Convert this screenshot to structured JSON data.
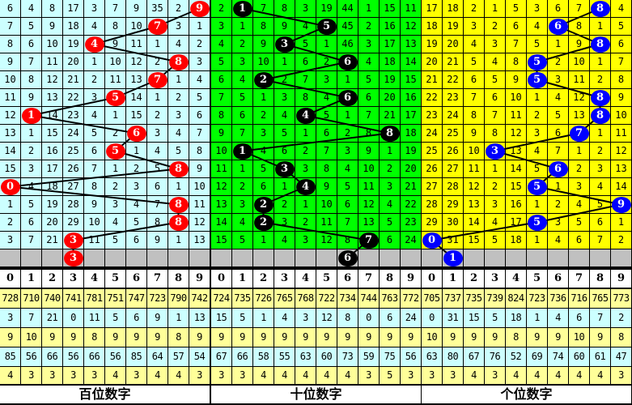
{
  "chart_data": {
    "type": "table",
    "digits": [
      "0",
      "1",
      "2",
      "3",
      "4",
      "5",
      "6",
      "7",
      "8",
      "9"
    ],
    "panels": [
      {
        "title": "百位数字",
        "cell_bg": "#ccffff",
        "ball_color": "#ff0000",
        "ball_text_color": "#ffffff",
        "rows": [
          [
            6,
            4,
            8,
            17,
            3,
            7,
            9,
            35,
            2,
            9
          ],
          [
            7,
            5,
            9,
            18,
            4,
            8,
            10,
            7,
            3,
            1
          ],
          [
            8,
            6,
            10,
            19,
            4,
            9,
            11,
            1,
            4,
            2
          ],
          [
            9,
            7,
            11,
            20,
            1,
            10,
            12,
            2,
            8,
            3
          ],
          [
            10,
            8,
            12,
            21,
            2,
            11,
            13,
            7,
            1,
            4
          ],
          [
            11,
            9,
            13,
            22,
            3,
            5,
            14,
            1,
            2,
            5
          ],
          [
            12,
            1,
            14,
            23,
            4,
            1,
            15,
            2,
            3,
            6
          ],
          [
            13,
            1,
            15,
            24,
            5,
            2,
            6,
            3,
            4,
            7
          ],
          [
            14,
            2,
            16,
            25,
            6,
            5,
            1,
            4,
            5,
            8
          ],
          [
            15,
            3,
            17,
            26,
            7,
            1,
            2,
            5,
            8,
            9
          ],
          [
            0,
            4,
            18,
            27,
            8,
            2,
            3,
            6,
            1,
            10
          ],
          [
            1,
            5,
            19,
            28,
            9,
            3,
            4,
            7,
            8,
            11
          ],
          [
            2,
            6,
            20,
            29,
            10,
            4,
            5,
            8,
            8,
            12
          ],
          [
            3,
            7,
            21,
            3,
            11,
            5,
            6,
            9,
            1,
            13
          ]
        ],
        "hits": [
          9,
          7,
          4,
          8,
          7,
          5,
          1,
          6,
          5,
          8,
          0,
          8,
          8,
          3
        ],
        "next_hit": 3,
        "stat_rows": [
          [
            728,
            710,
            740,
            741,
            781,
            751,
            747,
            723,
            790,
            742
          ],
          [
            3,
            7,
            21,
            0,
            11,
            5,
            6,
            9,
            1,
            13
          ],
          [
            9,
            10,
            9,
            9,
            8,
            9,
            9,
            9,
            8,
            9
          ],
          [
            85,
            56,
            66,
            56,
            66,
            56,
            85,
            64,
            57,
            54
          ],
          [
            4,
            3,
            3,
            3,
            3,
            4,
            3,
            4,
            4,
            3
          ]
        ]
      },
      {
        "title": "十位数字",
        "cell_bg": "#00ff00",
        "ball_color": "#000000",
        "ball_text_color": "#ffffff",
        "rows": [
          [
            2,
            1,
            7,
            8,
            3,
            19,
            44,
            1,
            15,
            11
          ],
          [
            3,
            1,
            8,
            9,
            4,
            5,
            45,
            2,
            16,
            12
          ],
          [
            4,
            2,
            9,
            3,
            5,
            1,
            46,
            3,
            17,
            13
          ],
          [
            5,
            3,
            10,
            1,
            6,
            2,
            6,
            4,
            18,
            14
          ],
          [
            6,
            4,
            2,
            2,
            7,
            3,
            1,
            5,
            19,
            15
          ],
          [
            7,
            5,
            1,
            3,
            8,
            4,
            6,
            6,
            20,
            16
          ],
          [
            8,
            6,
            2,
            4,
            4,
            5,
            1,
            7,
            21,
            17
          ],
          [
            9,
            7,
            3,
            5,
            1,
            6,
            2,
            8,
            8,
            18
          ],
          [
            10,
            1,
            4,
            6,
            2,
            7,
            3,
            9,
            1,
            19
          ],
          [
            11,
            1,
            5,
            3,
            3,
            8,
            4,
            10,
            2,
            20
          ],
          [
            12,
            2,
            6,
            1,
            4,
            9,
            5,
            11,
            3,
            21
          ],
          [
            13,
            3,
            2,
            2,
            1,
            10,
            6,
            12,
            4,
            22
          ],
          [
            14,
            4,
            2,
            3,
            2,
            11,
            7,
            13,
            5,
            23
          ],
          [
            15,
            5,
            1,
            4,
            3,
            12,
            8,
            7,
            6,
            24
          ]
        ],
        "hits": [
          1,
          5,
          3,
          6,
          2,
          6,
          4,
          8,
          1,
          3,
          4,
          2,
          2,
          7
        ],
        "next_hit": 6,
        "stat_rows": [
          [
            724,
            735,
            726,
            765,
            768,
            722,
            734,
            744,
            763,
            772
          ],
          [
            15,
            5,
            1,
            4,
            3,
            12,
            8,
            0,
            6,
            24
          ],
          [
            9,
            9,
            9,
            9,
            9,
            9,
            9,
            9,
            9,
            9
          ],
          [
            67,
            66,
            58,
            55,
            63,
            60,
            73,
            59,
            75,
            56
          ],
          [
            3,
            3,
            4,
            4,
            4,
            4,
            4,
            3,
            5,
            3
          ]
        ]
      },
      {
        "title": "个位数字",
        "cell_bg": "#ffff00",
        "ball_color": "#0000ff",
        "ball_text_color": "#ffffff",
        "rows": [
          [
            17,
            18,
            2,
            1,
            5,
            3,
            6,
            7,
            8,
            4
          ],
          [
            18,
            19,
            3,
            2,
            6,
            4,
            6,
            8,
            1,
            5
          ],
          [
            19,
            20,
            4,
            3,
            7,
            5,
            1,
            9,
            8,
            6
          ],
          [
            20,
            21,
            5,
            4,
            8,
            5,
            2,
            10,
            1,
            7
          ],
          [
            21,
            22,
            6,
            5,
            9,
            5,
            3,
            11,
            2,
            8
          ],
          [
            22,
            23,
            7,
            6,
            10,
            1,
            4,
            12,
            8,
            9
          ],
          [
            23,
            24,
            8,
            7,
            11,
            2,
            5,
            13,
            8,
            10
          ],
          [
            24,
            25,
            9,
            8,
            12,
            3,
            6,
            7,
            1,
            11
          ],
          [
            25,
            26,
            10,
            3,
            13,
            4,
            7,
            1,
            2,
            12
          ],
          [
            26,
            27,
            11,
            1,
            14,
            5,
            6,
            2,
            3,
            13
          ],
          [
            27,
            28,
            12,
            2,
            15,
            5,
            1,
            3,
            4,
            14
          ],
          [
            28,
            29,
            13,
            3,
            16,
            1,
            2,
            4,
            5,
            9
          ],
          [
            29,
            30,
            14,
            4,
            17,
            5,
            3,
            5,
            6,
            1
          ],
          [
            0,
            31,
            15,
            5,
            18,
            1,
            4,
            6,
            7,
            2
          ]
        ],
        "hits": [
          8,
          6,
          8,
          5,
          5,
          8,
          8,
          7,
          3,
          6,
          5,
          9,
          5,
          0
        ],
        "next_hit": 1,
        "stat_rows": [
          [
            705,
            737,
            735,
            739,
            824,
            723,
            736,
            716,
            765,
            773
          ],
          [
            0,
            31,
            15,
            5,
            18,
            1,
            4,
            6,
            7,
            2
          ],
          [
            10,
            9,
            9,
            9,
            8,
            9,
            9,
            10,
            9,
            8
          ],
          [
            63,
            80,
            67,
            76,
            52,
            69,
            74,
            60,
            61,
            47
          ],
          [
            3,
            3,
            4,
            3,
            4,
            4,
            4,
            4,
            4,
            3
          ]
        ]
      }
    ],
    "colors": {
      "gray_row": "#c0c0c0",
      "stat_yellow": "#ffff99",
      "stat_cyan": "#ccffff",
      "line": "#000000"
    }
  }
}
